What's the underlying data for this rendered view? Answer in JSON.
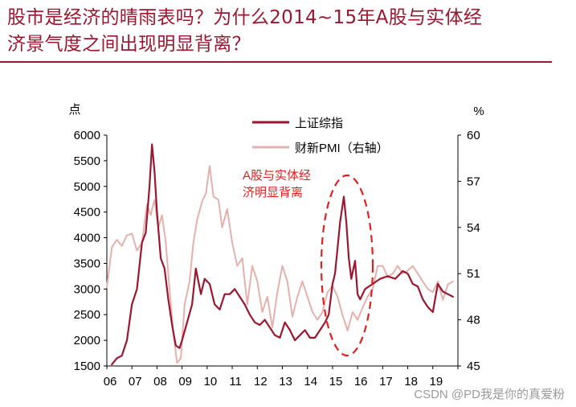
{
  "title_lines": [
    "股市是经济的晴雨表吗？为什么2014~15年A股与实体经",
    "济景气度之间出现明显背离？"
  ],
  "watermark": "CSDN @PD我是你的真爱粉",
  "colors": {
    "title": "#9b1730",
    "index": "#9b1730",
    "pmi": "#e6b0ad",
    "annotation": "#e0201f"
  },
  "chart_data": {
    "type": "line",
    "title": "",
    "xlabel": "",
    "ylabel_left": "点",
    "ylabel_right": "%",
    "ylim_left": [
      1500,
      6000
    ],
    "ylim_right": [
      45,
      60
    ],
    "xlim": [
      2006.0,
      2020.0
    ],
    "left_ticks": [
      "6000",
      "5500",
      "5000",
      "4500",
      "4000",
      "3500",
      "3000",
      "2500",
      "2000",
      "1500"
    ],
    "right_ticks": [
      "60",
      "57",
      "54",
      "51",
      "48",
      "45"
    ],
    "x_ticks": [
      "06",
      "07",
      "08",
      "09",
      "10",
      "11",
      "12",
      "13",
      "14",
      "15",
      "16",
      "17",
      "18",
      "19"
    ],
    "annotation": [
      "A股与实体经",
      "济明显背离"
    ],
    "series": [
      {
        "name": "上证综指",
        "axis": "left",
        "x": [
          2006.2,
          2006.4,
          2006.6,
          2006.8,
          2007.0,
          2007.2,
          2007.4,
          2007.55,
          2007.7,
          2007.8,
          2007.9,
          2008.0,
          2008.15,
          2008.3,
          2008.45,
          2008.6,
          2008.75,
          2008.9,
          2009.0,
          2009.2,
          2009.4,
          2009.55,
          2009.75,
          2009.9,
          2010.1,
          2010.3,
          2010.5,
          2010.7,
          2010.9,
          2011.1,
          2011.3,
          2011.5,
          2011.7,
          2011.9,
          2012.1,
          2012.3,
          2012.5,
          2012.7,
          2012.9,
          2013.1,
          2013.3,
          2013.5,
          2013.7,
          2013.9,
          2014.1,
          2014.3,
          2014.5,
          2014.7,
          2014.85,
          2015.0,
          2015.1,
          2015.2,
          2015.3,
          2015.45,
          2015.55,
          2015.65,
          2015.75,
          2015.9,
          2016.0,
          2016.1,
          2016.3,
          2016.6,
          2016.9,
          2017.2,
          2017.5,
          2017.8,
          2018.0,
          2018.2,
          2018.4,
          2018.6,
          2018.8,
          2019.0,
          2019.2,
          2019.4,
          2019.6,
          2019.8
        ],
        "values": [
          1530,
          1650,
          1700,
          2000,
          2700,
          3000,
          3900,
          4100,
          5000,
          5820,
          5300,
          4500,
          3600,
          3400,
          2800,
          2300,
          1900,
          1850,
          2000,
          2350,
          2700,
          3400,
          2900,
          3200,
          3100,
          2700,
          2600,
          2900,
          2900,
          3000,
          2850,
          2700,
          2500,
          2350,
          2300,
          2400,
          2250,
          2100,
          2050,
          2350,
          2200,
          2000,
          2100,
          2200,
          2050,
          2050,
          2200,
          2350,
          2500,
          3100,
          3300,
          3800,
          4300,
          4800,
          4300,
          3600,
          3200,
          3550,
          2900,
          2800,
          3000,
          3100,
          3200,
          3250,
          3200,
          3350,
          3300,
          3100,
          3050,
          2800,
          2650,
          2550,
          3100,
          2950,
          2900,
          2850
        ]
      },
      {
        "name": "财新PMI（右轴）",
        "axis": "right",
        "x": [
          2006.0,
          2006.2,
          2006.4,
          2006.6,
          2006.8,
          2007.0,
          2007.2,
          2007.4,
          2007.6,
          2007.75,
          2007.9,
          2008.05,
          2008.2,
          2008.35,
          2008.5,
          2008.65,
          2008.8,
          2008.95,
          2009.1,
          2009.3,
          2009.45,
          2009.6,
          2009.8,
          2009.95,
          2010.1,
          2010.25,
          2010.45,
          2010.6,
          2010.8,
          2011.0,
          2011.2,
          2011.4,
          2011.6,
          2011.8,
          2012.0,
          2012.2,
          2012.4,
          2012.6,
          2012.8,
          2013.0,
          2013.2,
          2013.4,
          2013.6,
          2013.8,
          2014.0,
          2014.2,
          2014.4,
          2014.6,
          2014.8,
          2015.0,
          2015.2,
          2015.4,
          2015.6,
          2015.8,
          2016.0,
          2016.2,
          2016.4,
          2016.6,
          2016.8,
          2017.0,
          2017.2,
          2017.4,
          2017.6,
          2017.8,
          2018.0,
          2018.2,
          2018.4,
          2018.6,
          2018.8,
          2019.0,
          2019.2,
          2019.4,
          2019.6,
          2019.8
        ],
        "values": [
          50.1,
          52.7,
          53.2,
          52.8,
          53.5,
          53.6,
          52.5,
          53.0,
          55.5,
          54.8,
          55.8,
          54.0,
          54.8,
          53.0,
          50.0,
          47.2,
          45.2,
          45.5,
          49.0,
          50.5,
          53.0,
          54.5,
          55.7,
          56.2,
          58.0,
          56.0,
          55.8,
          54.0,
          55.2,
          53.0,
          51.5,
          52.0,
          49.0,
          51.5,
          50.5,
          48.5,
          49.5,
          47.5,
          49.8,
          51.5,
          50.5,
          48.2,
          49.5,
          50.5,
          49.5,
          48.5,
          48.0,
          48.5,
          49.8,
          50.2,
          49.5,
          48.3,
          47.3,
          48.5,
          48.0,
          48.8,
          49.5,
          50.0,
          51.5,
          51.5,
          50.8,
          51.0,
          51.5,
          51.0,
          51.2,
          51.5,
          51.0,
          50.5,
          50.0,
          49.8,
          50.5,
          49.3,
          50.3,
          50.5
        ]
      }
    ]
  }
}
